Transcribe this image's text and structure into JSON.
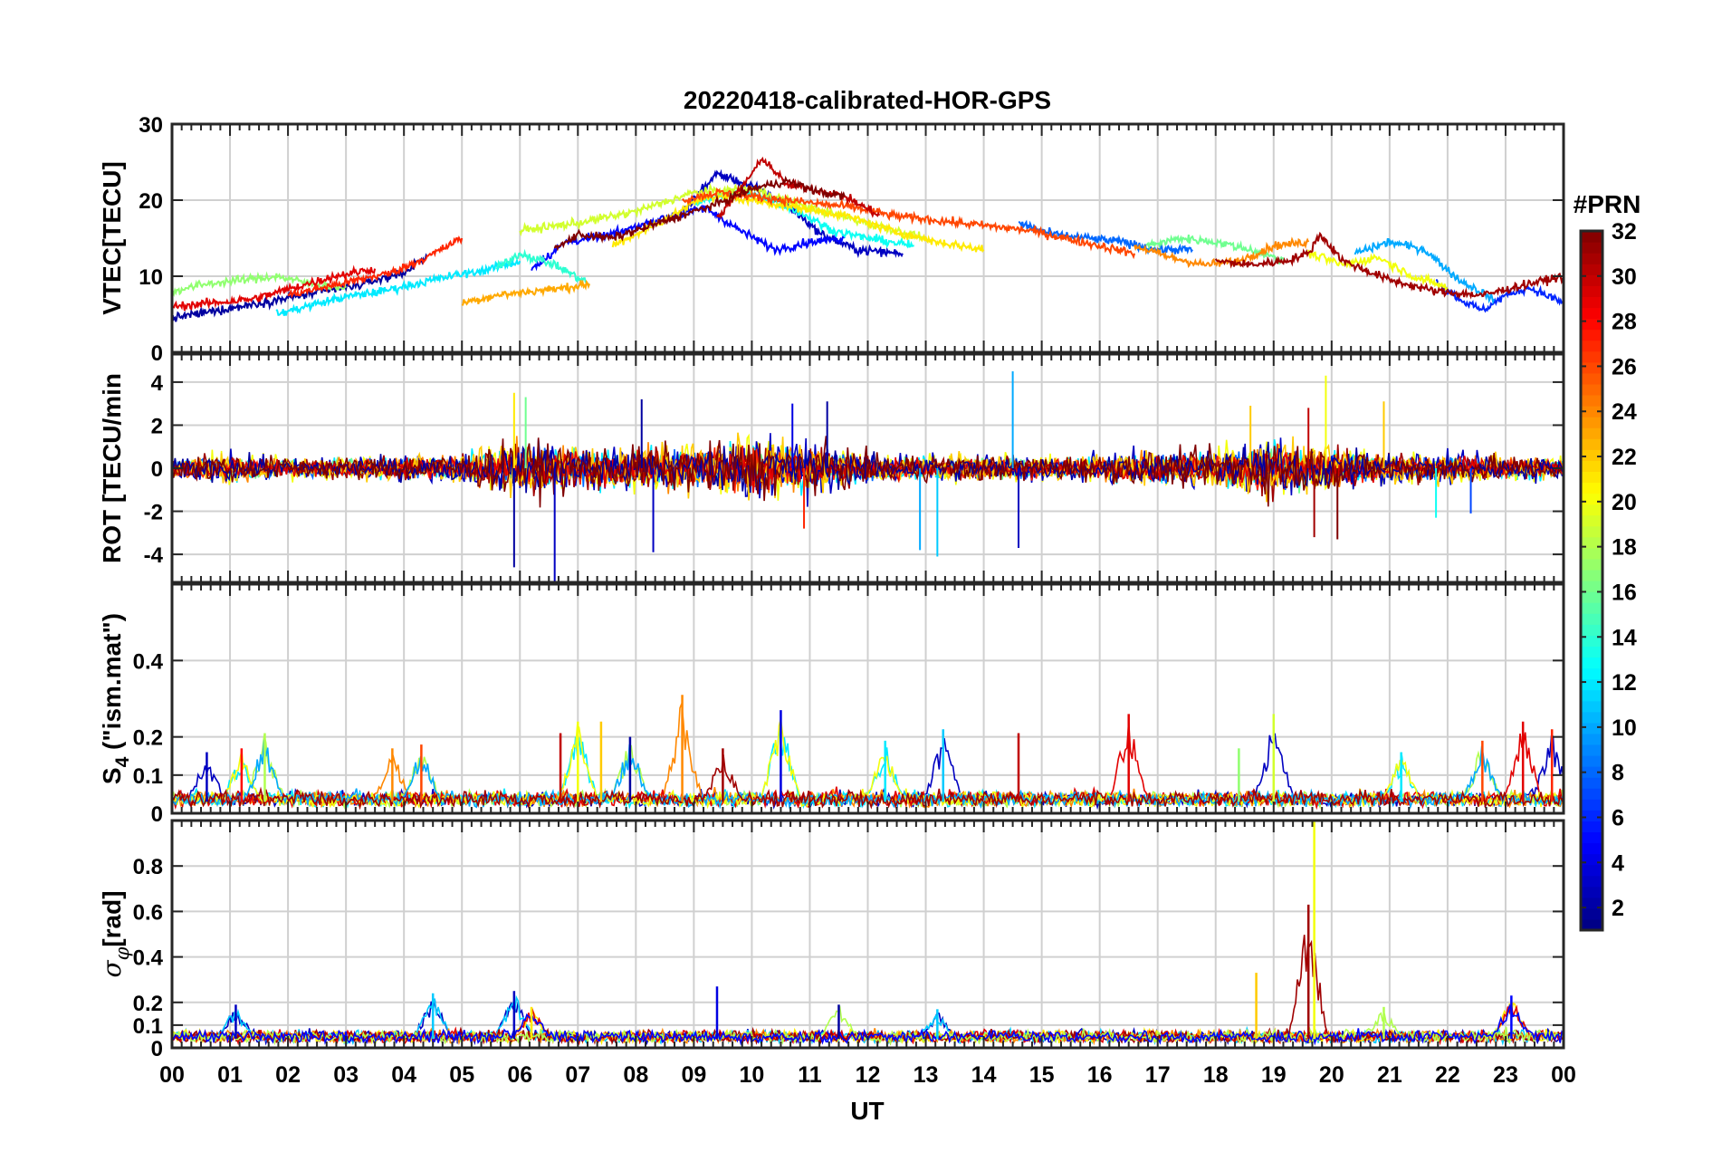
{
  "figure_title": "20220418-calibrated-HOR-GPS",
  "colorbar": {
    "title": "#PRN",
    "range": [
      1,
      32
    ],
    "ticks": [
      2,
      4,
      6,
      8,
      10,
      12,
      14,
      16,
      18,
      20,
      22,
      24,
      26,
      28,
      30,
      32
    ],
    "tick_labels": [
      "2",
      "4",
      "6",
      "8",
      "10",
      "12",
      "14",
      "16",
      "18",
      "20",
      "22",
      "24",
      "26",
      "28",
      "30",
      "32"
    ],
    "colormap": "jet"
  },
  "chart_data": [
    {
      "type": "line",
      "panel": "vtec",
      "ylabel": "VTEC[TECU]",
      "ylim": [
        0,
        30
      ],
      "yticks": [
        0,
        10,
        20,
        30
      ],
      "ytick_labels": [
        "0",
        "10",
        "20",
        "30"
      ],
      "xlim": [
        0,
        24
      ],
      "grid": true,
      "series": [
        {
          "name": "PRN 2",
          "prn": 2,
          "x": [
            0,
            0.8,
            1.6,
            2.4,
            3.2,
            4.0,
            4.4
          ],
          "y": [
            4.5,
            5.5,
            6.6,
            7.7,
            8.8,
            10.5,
            12.5
          ]
        },
        {
          "name": "PRN 3",
          "prn": 3,
          "x": [
            8.8,
            9.4,
            10.0,
            10.6,
            11.2,
            11.8,
            12.6
          ],
          "y": [
            18.5,
            23.5,
            21.8,
            19.5,
            15.5,
            13.5,
            13.0
          ]
        },
        {
          "name": "PRN 5",
          "prn": 5,
          "x": [
            6.2,
            6.8,
            7.6,
            8.4,
            9.2,
            9.8,
            10.4,
            11.0,
            11.6
          ],
          "y": [
            11.0,
            14.5,
            15.5,
            17.5,
            19.0,
            16.0,
            13.5,
            14.5,
            15.0
          ]
        },
        {
          "name": "PRN 6",
          "prn": 6,
          "x": [
            21.8,
            22.2,
            22.6,
            23.0,
            23.4,
            24.0
          ],
          "y": [
            9.5,
            7.0,
            5.5,
            7.5,
            8.5,
            6.5
          ]
        },
        {
          "name": "PRN 8",
          "prn": 8,
          "x": [
            14.6,
            15.2,
            15.8,
            16.4,
            17.0,
            17.6
          ],
          "y": [
            17.0,
            15.5,
            15.0,
            14.5,
            13.5,
            13.5
          ]
        },
        {
          "name": "PRN 10",
          "prn": 10,
          "x": [
            20.4,
            21.0,
            21.6,
            22.2,
            22.8
          ],
          "y": [
            13.0,
            14.5,
            13.5,
            9.5,
            7.0
          ]
        },
        {
          "name": "PRN 12",
          "prn": 12,
          "x": [
            1.8,
            2.4,
            3.0,
            3.6,
            4.2,
            4.8,
            5.4,
            6.0
          ],
          "y": [
            5.0,
            6.2,
            7.3,
            8.0,
            9.0,
            10.0,
            10.8,
            12.0
          ]
        },
        {
          "name": "PRN 13",
          "prn": 13,
          "x": [
            9.0,
            9.6,
            10.2,
            10.8,
            11.4,
            12.0,
            12.8
          ],
          "y": [
            19.5,
            21.0,
            20.5,
            18.5,
            16.0,
            15.0,
            14.0
          ]
        },
        {
          "name": "PRN 14",
          "prn": 14,
          "x": [
            5.6,
            6.0,
            6.6,
            7.2
          ],
          "y": [
            11.0,
            13.0,
            11.5,
            9.0
          ]
        },
        {
          "name": "PRN 16",
          "prn": 16,
          "x": [
            16.8,
            17.4,
            18.0,
            18.6,
            19.2
          ],
          "y": [
            14.0,
            15.0,
            14.5,
            13.5,
            12.0
          ]
        },
        {
          "name": "PRN 17",
          "prn": 17,
          "x": [
            0,
            0.6,
            1.2,
            1.8,
            2.4,
            3.0
          ],
          "y": [
            8.0,
            9.0,
            9.5,
            10.0,
            9.0,
            8.5
          ]
        },
        {
          "name": "PRN 19",
          "prn": 19,
          "x": [
            6.0,
            7.0,
            8.0,
            9.0,
            10.0,
            11.0,
            12.0,
            13.0
          ],
          "y": [
            16.0,
            17.0,
            18.5,
            21.0,
            21.5,
            19.0,
            17.0,
            15.0
          ]
        },
        {
          "name": "PRN 20",
          "prn": 20,
          "x": [
            19.6,
            20.2,
            20.8,
            21.4,
            22.0
          ],
          "y": [
            13.0,
            11.5,
            12.5,
            10.0,
            8.5
          ]
        },
        {
          "name": "PRN 21",
          "prn": 21,
          "x": [
            7.6,
            8.4,
            9.2,
            10.0,
            10.8,
            11.6,
            12.4,
            13.2,
            14.0
          ],
          "y": [
            14.0,
            17.0,
            20.5,
            20.0,
            19.0,
            18.0,
            16.0,
            14.5,
            13.5
          ]
        },
        {
          "name": "PRN 23",
          "prn": 23,
          "x": [
            5.0,
            5.6,
            6.2,
            6.8,
            7.2
          ],
          "y": [
            6.5,
            7.5,
            8.0,
            8.5,
            9.0
          ]
        },
        {
          "name": "PRN 24",
          "prn": 24,
          "x": [
            16.6,
            17.2,
            17.8,
            18.4,
            19.0,
            19.6
          ],
          "y": [
            14.0,
            12.5,
            11.5,
            12.0,
            14.0,
            14.5
          ]
        },
        {
          "name": "PRN 26",
          "prn": 26,
          "x": [
            8.8,
            9.4,
            10.0,
            10.6,
            11.2,
            11.8,
            12.4,
            13.0,
            13.6,
            14.2,
            14.8,
            15.4,
            16.0,
            16.6
          ],
          "y": [
            20.0,
            21.0,
            20.5,
            20.0,
            19.5,
            19.0,
            18.0,
            17.5,
            17.0,
            16.5,
            16.0,
            15.0,
            14.0,
            13.0
          ]
        },
        {
          "name": "PRN 27",
          "prn": 27,
          "x": [
            2.0,
            2.6,
            3.2,
            3.8,
            4.4,
            5.0
          ],
          "y": [
            7.5,
            8.5,
            9.5,
            10.5,
            12.5,
            15.0
          ]
        },
        {
          "name": "PRN 29",
          "prn": 29,
          "x": [
            0,
            0.7,
            1.4,
            2.1,
            2.8,
            3.5
          ],
          "y": [
            6.0,
            6.5,
            7.0,
            8.5,
            10.0,
            11.0
          ]
        },
        {
          "name": "PRN 30",
          "prn": 30,
          "x": [
            9.4,
            9.8,
            10.2,
            10.6,
            11.0,
            11.6,
            12.2
          ],
          "y": [
            17.5,
            21.5,
            25.5,
            22.0,
            21.5,
            20.5,
            18.0
          ]
        },
        {
          "name": "PRN 31",
          "prn": 31,
          "x": [
            18.0,
            18.6,
            19.2,
            19.6,
            19.8,
            20.2,
            21.0,
            21.8,
            22.6,
            23.4,
            24.0
          ],
          "y": [
            12.0,
            11.5,
            12.0,
            13.0,
            15.5,
            12.0,
            9.5,
            8.0,
            7.5,
            9.0,
            10.0
          ]
        },
        {
          "name": "PRN 32",
          "prn": 32,
          "x": [
            6.6,
            7.0,
            7.6,
            8.2,
            8.8,
            9.4,
            10.0,
            10.6,
            11.2,
            11.6
          ],
          "y": [
            13.5,
            15.5,
            15.0,
            16.5,
            18.0,
            19.5,
            21.5,
            22.5,
            21.0,
            20.5
          ]
        }
      ]
    },
    {
      "type": "line",
      "panel": "rot",
      "ylabel": "ROT [TECU/min",
      "ylim": [
        -5.3,
        5.3
      ],
      "yticks": [
        -4,
        -2,
        0,
        2,
        4
      ],
      "ytick_labels": [
        "-4",
        "-2",
        "0",
        "2",
        "4"
      ],
      "xlim": [
        0,
        24
      ],
      "grid": true,
      "noise_envelope_x": [
        0,
        1,
        2,
        3,
        4,
        5,
        6,
        7,
        8,
        9,
        10,
        11,
        12,
        13,
        14,
        15,
        16,
        17,
        18,
        19,
        20,
        21,
        22,
        23,
        24
      ],
      "noise_envelope_amplitude": [
        0.5,
        0.7,
        0.5,
        0.5,
        0.6,
        0.7,
        1.3,
        1.1,
        1.0,
        1.1,
        1.4,
        1.2,
        0.7,
        0.6,
        0.6,
        0.6,
        0.6,
        0.8,
        0.9,
        1.4,
        1.0,
        0.7,
        0.7,
        0.6,
        0.5
      ],
      "spikes": [
        {
          "x": 5.9,
          "y": 3.5,
          "prn": 21
        },
        {
          "x": 5.9,
          "y": -4.6,
          "prn": 2
        },
        {
          "x": 6.1,
          "y": 3.3,
          "prn": 16
        },
        {
          "x": 6.6,
          "y": -5.3,
          "prn": 3
        },
        {
          "x": 8.1,
          "y": 3.2,
          "prn": 2
        },
        {
          "x": 8.3,
          "y": -3.9,
          "prn": 3
        },
        {
          "x": 10.7,
          "y": 3.0,
          "prn": 4
        },
        {
          "x": 10.9,
          "y": -2.8,
          "prn": 27
        },
        {
          "x": 11.3,
          "y": 3.1,
          "prn": 2
        },
        {
          "x": 12.9,
          "y": -3.8,
          "prn": 10
        },
        {
          "x": 13.2,
          "y": -4.1,
          "prn": 11
        },
        {
          "x": 14.5,
          "y": 4.5,
          "prn": 10
        },
        {
          "x": 14.6,
          "y": -3.7,
          "prn": 3
        },
        {
          "x": 18.6,
          "y": 2.9,
          "prn": 22
        },
        {
          "x": 19.6,
          "y": 2.8,
          "prn": 30
        },
        {
          "x": 19.7,
          "y": -3.2,
          "prn": 31
        },
        {
          "x": 19.9,
          "y": 4.3,
          "prn": 20
        },
        {
          "x": 20.1,
          "y": -3.3,
          "prn": 32
        },
        {
          "x": 20.9,
          "y": 3.1,
          "prn": 22
        },
        {
          "x": 22.4,
          "y": -2.1,
          "prn": 7
        },
        {
          "x": 21.8,
          "y": -2.3,
          "prn": 13
        }
      ]
    },
    {
      "type": "line",
      "panel": "s4",
      "ylabel": "S_4 (\"ism.mat\")",
      "ylabel_main": "S",
      "ylabel_sub": "4",
      "ylabel_rest": " (\"ism.mat\")",
      "ylim": [
        0,
        0.6
      ],
      "yticks": [
        0,
        0.1,
        0.2,
        0.4
      ],
      "ytick_labels": [
        "0",
        "0.1",
        "0.2",
        "0.4"
      ],
      "xlim": [
        0,
        24
      ],
      "grid": true,
      "baseline": 0.03,
      "peaks": [
        {
          "x": 0.6,
          "y": 0.16,
          "prn": 3
        },
        {
          "x": 1.2,
          "y": 0.17,
          "prn": 28
        },
        {
          "x": 1.6,
          "y": 0.21,
          "prn": 18
        },
        {
          "x": 3.8,
          "y": 0.17,
          "prn": 24
        },
        {
          "x": 4.3,
          "y": 0.18,
          "prn": 26
        },
        {
          "x": 6.7,
          "y": 0.21,
          "prn": 30
        },
        {
          "x": 7.0,
          "y": 0.24,
          "prn": 20
        },
        {
          "x": 7.4,
          "y": 0.24,
          "prn": 22
        },
        {
          "x": 7.9,
          "y": 0.2,
          "prn": 2
        },
        {
          "x": 8.8,
          "y": 0.31,
          "prn": 24
        },
        {
          "x": 9.5,
          "y": 0.17,
          "prn": 31
        },
        {
          "x": 10.5,
          "y": 0.27,
          "prn": 4
        },
        {
          "x": 12.3,
          "y": 0.19,
          "prn": 12
        },
        {
          "x": 13.3,
          "y": 0.22,
          "prn": 11
        },
        {
          "x": 14.6,
          "y": 0.21,
          "prn": 30
        },
        {
          "x": 16.5,
          "y": 0.26,
          "prn": 29
        },
        {
          "x": 18.4,
          "y": 0.17,
          "prn": 17
        },
        {
          "x": 19.0,
          "y": 0.26,
          "prn": 19
        },
        {
          "x": 21.2,
          "y": 0.16,
          "prn": 12
        },
        {
          "x": 22.6,
          "y": 0.19,
          "prn": 26
        },
        {
          "x": 23.3,
          "y": 0.24,
          "prn": 29
        },
        {
          "x": 23.8,
          "y": 0.22,
          "prn": 27
        }
      ]
    },
    {
      "type": "line",
      "panel": "sigma_phi",
      "ylabel": "σ_φ[rad]",
      "ylabel_main": "σ",
      "ylabel_sub": "φ",
      "ylabel_rest": "[rad]",
      "ylim": [
        0,
        1.0
      ],
      "yticks": [
        0,
        0.1,
        0.2,
        0.4,
        0.6,
        0.8
      ],
      "ytick_labels": [
        "0",
        "0.1",
        "0.2",
        "0.4",
        "0.6",
        "0.8"
      ],
      "xlim": [
        0,
        24
      ],
      "grid": true,
      "baseline": 0.04,
      "peaks": [
        {
          "x": 1.1,
          "y": 0.19,
          "prn": 3
        },
        {
          "x": 4.5,
          "y": 0.24,
          "prn": 11
        },
        {
          "x": 5.9,
          "y": 0.25,
          "prn": 3
        },
        {
          "x": 6.2,
          "y": 0.18,
          "prn": 21
        },
        {
          "x": 9.4,
          "y": 0.27,
          "prn": 4
        },
        {
          "x": 11.5,
          "y": 0.19,
          "prn": 2
        },
        {
          "x": 13.2,
          "y": 0.17,
          "prn": 11
        },
        {
          "x": 18.7,
          "y": 0.33,
          "prn": 22
        },
        {
          "x": 19.6,
          "y": 0.63,
          "prn": 31
        },
        {
          "x": 19.7,
          "y": 1.0,
          "prn": 20
        },
        {
          "x": 20.9,
          "y": 0.18,
          "prn": 18
        },
        {
          "x": 23.1,
          "y": 0.23,
          "prn": 5
        }
      ]
    }
  ],
  "x_axis": {
    "label": "UT",
    "tick_labels": [
      "00",
      "01",
      "02",
      "03",
      "04",
      "05",
      "06",
      "07",
      "08",
      "09",
      "10",
      "11",
      "12",
      "13",
      "14",
      "15",
      "16",
      "17",
      "18",
      "19",
      "20",
      "21",
      "22",
      "23",
      "00"
    ]
  }
}
